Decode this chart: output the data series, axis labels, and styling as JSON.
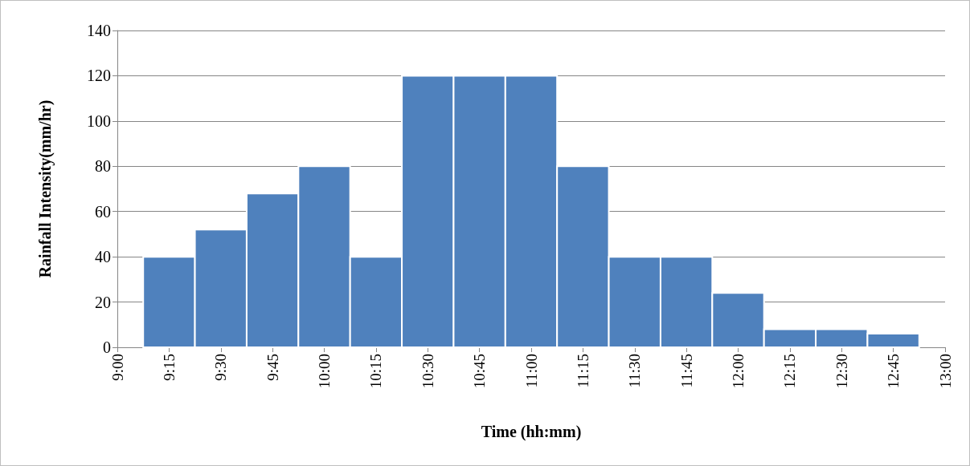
{
  "chart_data": {
    "type": "histogram",
    "xlabel": "Time (hh:mm)",
    "ylabel": "Rainfall Intensity(mm/hr)",
    "bins": [
      9.125,
      9.375,
      9.625,
      9.875,
      10.125,
      10.375,
      10.625,
      10.875,
      11.125,
      11.375,
      11.625,
      11.875,
      12.125,
      12.375,
      12.625,
      12.875
    ],
    "values": [
      40,
      52,
      68,
      80,
      40,
      120,
      120,
      120,
      80,
      40,
      40,
      24,
      8,
      8,
      6
    ],
    "color": "#4f81bd",
    "xlim": [
      9,
      13
    ],
    "xticks": [
      {
        "value": 9,
        "label": "9:00"
      },
      {
        "value": 9.25,
        "label": "9:15"
      },
      {
        "value": 9.5,
        "label": "9:30"
      },
      {
        "value": 9.75,
        "label": "9:45"
      },
      {
        "value": 10,
        "label": "10:00"
      },
      {
        "value": 10.25,
        "label": "10:15"
      },
      {
        "value": 10.5,
        "label": "10:30"
      },
      {
        "value": 10.75,
        "label": "10:45"
      },
      {
        "value": 11,
        "label": "11:00"
      },
      {
        "value": 11.25,
        "label": "11:15"
      },
      {
        "value": 11.5,
        "label": "11:30"
      },
      {
        "value": 11.75,
        "label": "11:45"
      },
      {
        "value": 12,
        "label": "12:00"
      },
      {
        "value": 12.25,
        "label": "12:15"
      },
      {
        "value": 12.5,
        "label": "12:30"
      },
      {
        "value": 12.75,
        "label": "12:45"
      },
      {
        "value": 13,
        "label": "13:00"
      }
    ],
    "ylim": [
      0,
      140
    ],
    "yticks": [
      0,
      20,
      40,
      60,
      80,
      100,
      120,
      140
    ],
    "grid": "y"
  }
}
